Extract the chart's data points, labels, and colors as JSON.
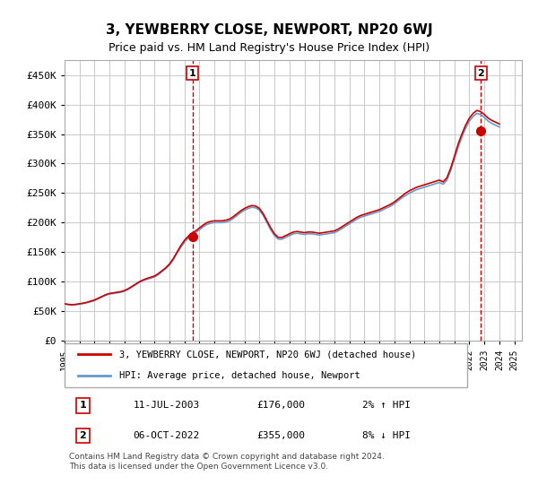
{
  "title": "3, YEWBERRY CLOSE, NEWPORT, NP20 6WJ",
  "subtitle": "Price paid vs. HM Land Registry's House Price Index (HPI)",
  "ylabel_ticks": [
    "£0",
    "£50K",
    "£100K",
    "£150K",
    "£200K",
    "£250K",
    "£300K",
    "£350K",
    "£400K",
    "£450K"
  ],
  "ylim": [
    0,
    475000
  ],
  "xlim_start": 1995.0,
  "xlim_end": 2025.5,
  "line1_label": "3, YEWBERRY CLOSE, NEWPORT, NP20 6WJ (detached house)",
  "line2_label": "HPI: Average price, detached house, Newport",
  "sale1_label": "1",
  "sale1_date": "11-JUL-2003",
  "sale1_price": "£176,000",
  "sale1_hpi": "2% ↑ HPI",
  "sale1_year": 2003.53,
  "sale1_value": 176000,
  "sale2_label": "2",
  "sale2_date": "06-OCT-2022",
  "sale2_price": "£355,000",
  "sale2_hpi": "8% ↓ HPI",
  "sale2_year": 2022.77,
  "sale2_value": 355000,
  "line_color_red": "#cc0000",
  "line_color_blue": "#6699cc",
  "marker_color_red": "#cc0000",
  "bg_color": "#ffffff",
  "grid_color": "#cccccc",
  "footnote": "Contains HM Land Registry data © Crown copyright and database right 2024.\nThis data is licensed under the Open Government Licence v3.0.",
  "hpi_data_x": [
    1995.0,
    1995.25,
    1995.5,
    1995.75,
    1996.0,
    1996.25,
    1996.5,
    1996.75,
    1997.0,
    1997.25,
    1997.5,
    1997.75,
    1998.0,
    1998.25,
    1998.5,
    1998.75,
    1999.0,
    1999.25,
    1999.5,
    1999.75,
    2000.0,
    2000.25,
    2000.5,
    2000.75,
    2001.0,
    2001.25,
    2001.5,
    2001.75,
    2002.0,
    2002.25,
    2002.5,
    2002.75,
    2003.0,
    2003.25,
    2003.5,
    2003.75,
    2004.0,
    2004.25,
    2004.5,
    2004.75,
    2005.0,
    2005.25,
    2005.5,
    2005.75,
    2006.0,
    2006.25,
    2006.5,
    2006.75,
    2007.0,
    2007.25,
    2007.5,
    2007.75,
    2008.0,
    2008.25,
    2008.5,
    2008.75,
    2009.0,
    2009.25,
    2009.5,
    2009.75,
    2010.0,
    2010.25,
    2010.5,
    2010.75,
    2011.0,
    2011.25,
    2011.5,
    2011.75,
    2012.0,
    2012.25,
    2012.5,
    2012.75,
    2013.0,
    2013.25,
    2013.5,
    2013.75,
    2014.0,
    2014.25,
    2014.5,
    2014.75,
    2015.0,
    2015.25,
    2015.5,
    2015.75,
    2016.0,
    2016.25,
    2016.5,
    2016.75,
    2017.0,
    2017.25,
    2017.5,
    2017.75,
    2018.0,
    2018.25,
    2018.5,
    2018.75,
    2019.0,
    2019.25,
    2019.5,
    2019.75,
    2020.0,
    2020.25,
    2020.5,
    2020.75,
    2021.0,
    2021.25,
    2021.5,
    2021.75,
    2022.0,
    2022.25,
    2022.5,
    2022.75,
    2023.0,
    2023.25,
    2023.5,
    2023.75,
    2024.0
  ],
  "hpi_data_y": [
    62000,
    61000,
    60500,
    61000,
    62000,
    63000,
    64500,
    66000,
    68000,
    71000,
    74000,
    77000,
    79000,
    80000,
    81000,
    82000,
    84000,
    87000,
    91000,
    95000,
    99000,
    102000,
    104000,
    106000,
    108000,
    112000,
    117000,
    122000,
    128000,
    137000,
    148000,
    158000,
    167000,
    174000,
    179000,
    183000,
    188000,
    193000,
    197000,
    199000,
    200000,
    200000,
    200000,
    201000,
    203000,
    207000,
    212000,
    217000,
    221000,
    224000,
    226000,
    225000,
    221000,
    212000,
    200000,
    188000,
    178000,
    172000,
    172000,
    175000,
    178000,
    181000,
    182000,
    181000,
    180000,
    181000,
    181000,
    180000,
    179000,
    180000,
    181000,
    182000,
    183000,
    186000,
    190000,
    194000,
    198000,
    202000,
    206000,
    209000,
    211000,
    213000,
    215000,
    217000,
    219000,
    222000,
    225000,
    228000,
    232000,
    237000,
    242000,
    246000,
    250000,
    253000,
    256000,
    258000,
    260000,
    262000,
    264000,
    266000,
    268000,
    265000,
    272000,
    288000,
    308000,
    328000,
    345000,
    360000,
    372000,
    380000,
    385000,
    383000,
    378000,
    372000,
    368000,
    365000,
    362000
  ],
  "prop_data_x": [
    1995.0,
    1995.25,
    1995.5,
    1995.75,
    1996.0,
    1996.25,
    1996.5,
    1996.75,
    1997.0,
    1997.25,
    1997.5,
    1997.75,
    1998.0,
    1998.25,
    1998.5,
    1998.75,
    1999.0,
    1999.25,
    1999.5,
    1999.75,
    2000.0,
    2000.25,
    2000.5,
    2000.75,
    2001.0,
    2001.25,
    2001.5,
    2001.75,
    2002.0,
    2002.25,
    2002.5,
    2002.75,
    2003.0,
    2003.25,
    2003.5,
    2003.75,
    2004.0,
    2004.25,
    2004.5,
    2004.75,
    2005.0,
    2005.25,
    2005.5,
    2005.75,
    2006.0,
    2006.25,
    2006.5,
    2006.75,
    2007.0,
    2007.25,
    2007.5,
    2007.75,
    2008.0,
    2008.25,
    2008.5,
    2008.75,
    2009.0,
    2009.25,
    2009.5,
    2009.75,
    2010.0,
    2010.25,
    2010.5,
    2010.75,
    2011.0,
    2011.25,
    2011.5,
    2011.75,
    2012.0,
    2012.25,
    2012.5,
    2012.75,
    2013.0,
    2013.25,
    2013.5,
    2013.75,
    2014.0,
    2014.25,
    2014.5,
    2014.75,
    2015.0,
    2015.25,
    2015.5,
    2015.75,
    2016.0,
    2016.25,
    2016.5,
    2016.75,
    2017.0,
    2017.25,
    2017.5,
    2017.75,
    2018.0,
    2018.25,
    2018.5,
    2018.75,
    2019.0,
    2019.25,
    2019.5,
    2019.75,
    2020.0,
    2020.25,
    2020.5,
    2020.75,
    2021.0,
    2021.25,
    2021.5,
    2021.75,
    2022.0,
    2022.25,
    2022.5,
    2022.75,
    2023.0,
    2023.25,
    2023.5,
    2023.75,
    2024.0
  ],
  "prop_data_y": [
    62500,
    61500,
    61000,
    61500,
    62500,
    63500,
    65000,
    67000,
    69000,
    72000,
    75000,
    78000,
    80000,
    81000,
    82000,
    83000,
    85000,
    88000,
    92000,
    96000,
    100000,
    103000,
    105500,
    107500,
    109500,
    113500,
    118500,
    123500,
    130000,
    139000,
    150000,
    161000,
    170000,
    177000,
    182000,
    186000,
    191000,
    196000,
    200000,
    202000,
    203000,
    203000,
    203000,
    204000,
    206000,
    210000,
    215000,
    220000,
    224000,
    227000,
    229000,
    228000,
    224000,
    215000,
    203000,
    191000,
    181000,
    175000,
    175000,
    178000,
    181000,
    184000,
    185000,
    184000,
    183000,
    184000,
    184000,
    183000,
    182000,
    183000,
    184000,
    185000,
    186000,
    189000,
    193000,
    197000,
    201000,
    205000,
    209000,
    212000,
    214000,
    216000,
    218000,
    220000,
    222000,
    225000,
    228000,
    231000,
    235000,
    240000,
    245000,
    250000,
    254000,
    257000,
    260000,
    262000,
    264000,
    266000,
    268000,
    270000,
    272000,
    269000,
    276000,
    292000,
    312000,
    333000,
    350000,
    365000,
    377000,
    385000,
    390000,
    388000,
    383000,
    377000,
    373000,
    370000,
    367000
  ]
}
